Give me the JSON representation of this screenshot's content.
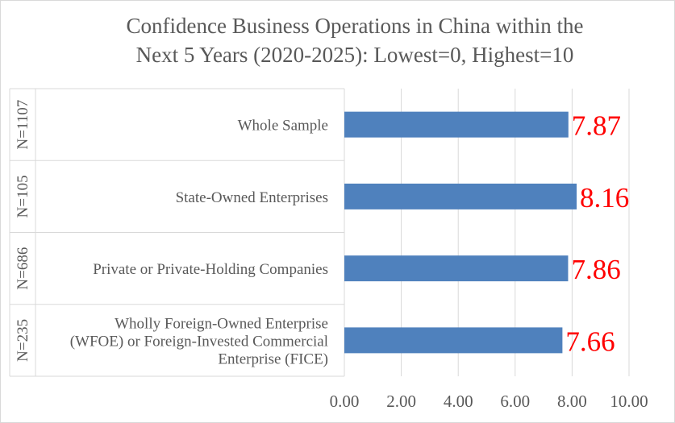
{
  "chart_data": {
    "type": "bar",
    "orientation": "horizontal",
    "title_lines": [
      "Confidence Business Operations in China within the",
      "Next 5 Years (2020-2025): Lowest=0, Highest=10"
    ],
    "categories": [
      {
        "group": "N=1107",
        "label_lines": [
          "Whole Sample"
        ]
      },
      {
        "group": "N=105",
        "label_lines": [
          "State-Owned Enterprises"
        ]
      },
      {
        "group": "N=686",
        "label_lines": [
          "Private or Private-Holding Companies"
        ]
      },
      {
        "group": "N=235",
        "label_lines": [
          "Wholly Foreign-Owned Enterprise",
          "(WFOE) or Foreign-Invested Commercial",
          "Enterprise (FICE)"
        ]
      }
    ],
    "values": [
      7.87,
      8.16,
      7.86,
      7.66
    ],
    "data_labels": [
      "7.87",
      "8.16",
      "7.86",
      "7.66"
    ],
    "xlim": [
      0,
      10
    ],
    "x_ticks": [
      "0.00",
      "2.00",
      "4.00",
      "6.00",
      "8.00",
      "10.00"
    ],
    "grid": "vertical",
    "bar_color": "#4f81bd",
    "label_color": "#ff0000"
  }
}
